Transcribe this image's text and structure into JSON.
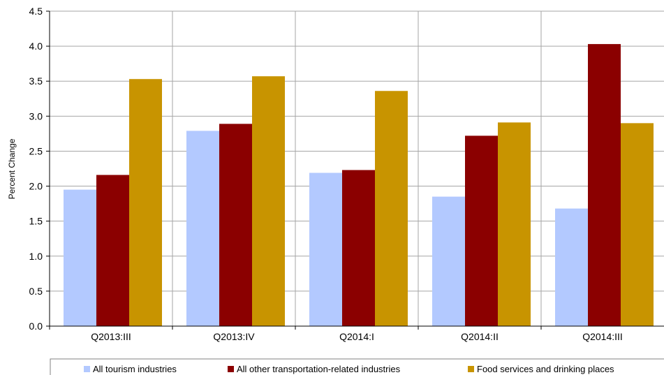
{
  "chart_data": {
    "type": "bar",
    "ylabel": "Percent Change",
    "ylim": [
      0,
      4.5
    ],
    "yticks": [
      "0.0",
      "0.5",
      "1.0",
      "1.5",
      "2.0",
      "2.5",
      "3.0",
      "3.5",
      "4.0",
      "4.5"
    ],
    "grid": true,
    "legend_position": "bottom",
    "categories": [
      "Q2013:III",
      "Q2013:IV",
      "Q2014:I",
      "Q2014:II",
      "Q2014:III"
    ],
    "series": [
      {
        "name": "All tourism industries",
        "color": "#b3c9ff",
        "values": [
          1.95,
          2.79,
          2.19,
          1.85,
          1.68
        ]
      },
      {
        "name": "All other transportation-related industries",
        "color": "#8b0000",
        "values": [
          2.16,
          2.89,
          2.23,
          2.72,
          4.03
        ]
      },
      {
        "name": "Food services and drinking places",
        "color": "#c89400",
        "values": [
          3.53,
          3.57,
          3.36,
          2.91,
          2.9
        ]
      }
    ]
  }
}
